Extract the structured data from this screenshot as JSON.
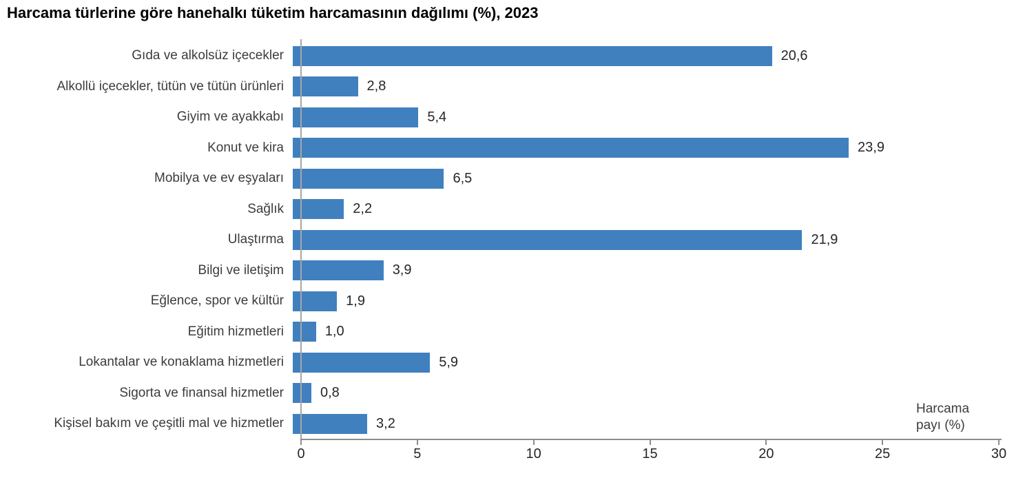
{
  "title": "Harcama türlerine göre hanehalkı tüketim harcamasının dağılımı (%), 2023",
  "chart_data": {
    "type": "bar",
    "orientation": "horizontal",
    "title": "Harcama türlerine göre hanehalkı tüketim harcamasının dağılımı (%), 2023",
    "categories": [
      "Gıda ve alkolsüz içecekler",
      "Alkollü içecekler, tütün ve tütün ürünleri",
      "Giyim ve ayakkabı",
      "Konut ve kira",
      "Mobilya ve ev eşyaları",
      "Sağlık",
      "Ulaştırma",
      "Bilgi ve iletişim",
      "Eğlence, spor ve kültür",
      "Eğitim hizmetleri",
      "Lokantalar ve konaklama hizmetleri",
      "Sigorta ve finansal hizmetler",
      "Kişisel bakım ve çeşitli mal ve hizmetler"
    ],
    "values": [
      20.6,
      2.8,
      5.4,
      23.9,
      6.5,
      2.2,
      21.9,
      3.9,
      1.9,
      1.0,
      5.9,
      0.8,
      3.2
    ],
    "value_labels": [
      "20,6",
      "2,8",
      "5,4",
      "23,9",
      "6,5",
      "2,2",
      "21,9",
      "3,9",
      "1,9",
      "1,0",
      "5,9",
      "0,8",
      "3,2"
    ],
    "xlabel": "Harcama payı (%)",
    "xlabel_lines": [
      "Harcama",
      "payı (%)"
    ],
    "ylabel": "",
    "xlim": [
      0,
      30
    ],
    "xticks": [
      0,
      5,
      10,
      15,
      20,
      25,
      30
    ],
    "grid": false,
    "legend": false,
    "bar_color": "#4080BE",
    "axis_line_color": "#8c8c8c",
    "tick_label_color": "#262626",
    "category_label_color": "#3c3c3c"
  }
}
